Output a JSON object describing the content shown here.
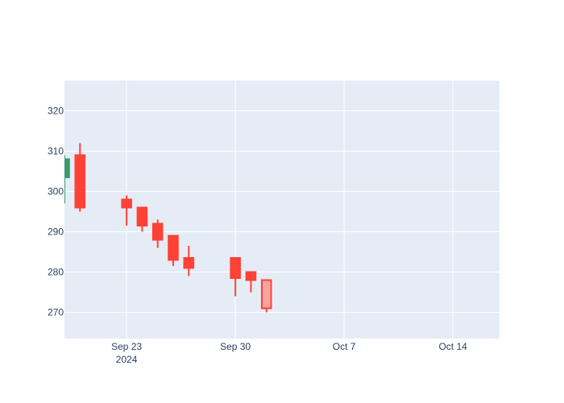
{
  "chart_data": {
    "type": "candlestick",
    "title": "",
    "xlabel": "",
    "ylabel": "",
    "x_tick_labels": [
      {
        "date": "2024-09-23",
        "label": "Sep 23",
        "sublabel": "2024"
      },
      {
        "date": "2024-09-30",
        "label": "Sep 30",
        "sublabel": ""
      },
      {
        "date": "2024-10-07",
        "label": "Oct 7",
        "sublabel": ""
      },
      {
        "date": "2024-10-14",
        "label": "Oct 14",
        "sublabel": ""
      }
    ],
    "xlim": [
      "2024-09-19",
      "2024-10-17"
    ],
    "ylim": [
      263.5,
      327.5
    ],
    "y_ticks": [
      270,
      280,
      290,
      300,
      310,
      320
    ],
    "grid": true,
    "colors": {
      "increasing": "#3D9970",
      "decreasing": "#FF4136",
      "highlight_fill": "#F7A4A0",
      "plot_bg": "#E5ECF6",
      "grid": "#ffffff"
    },
    "series": [
      {
        "date": "2024-09-19",
        "open": 303.5,
        "high": 309.0,
        "low": 297.0,
        "close": 308.0
      },
      {
        "date": "2024-09-20",
        "open": 309.0,
        "high": 312.0,
        "low": 295.0,
        "close": 296.0
      },
      {
        "date": "2024-09-23",
        "open": 298.0,
        "high": 299.0,
        "low": 291.5,
        "close": 296.0
      },
      {
        "date": "2024-09-24",
        "open": 296.0,
        "high": 296.0,
        "low": 290.0,
        "close": 291.5
      },
      {
        "date": "2024-09-25",
        "open": 292.0,
        "high": 293.0,
        "low": 286.0,
        "close": 288.0
      },
      {
        "date": "2024-09-26",
        "open": 289.0,
        "high": 289.0,
        "low": 281.5,
        "close": 283.0
      },
      {
        "date": "2024-09-27",
        "open": 283.5,
        "high": 286.5,
        "low": 279.0,
        "close": 281.0
      },
      {
        "date": "2024-09-30",
        "open": 283.5,
        "high": 283.5,
        "low": 274.0,
        "close": 278.5
      },
      {
        "date": "2024-10-01",
        "open": 280.0,
        "high": 280.0,
        "low": 275.0,
        "close": 278.0
      },
      {
        "date": "2024-10-02",
        "open": 278.0,
        "high": 278.0,
        "low": 270.0,
        "close": 271.0,
        "highlighted": true
      }
    ]
  }
}
